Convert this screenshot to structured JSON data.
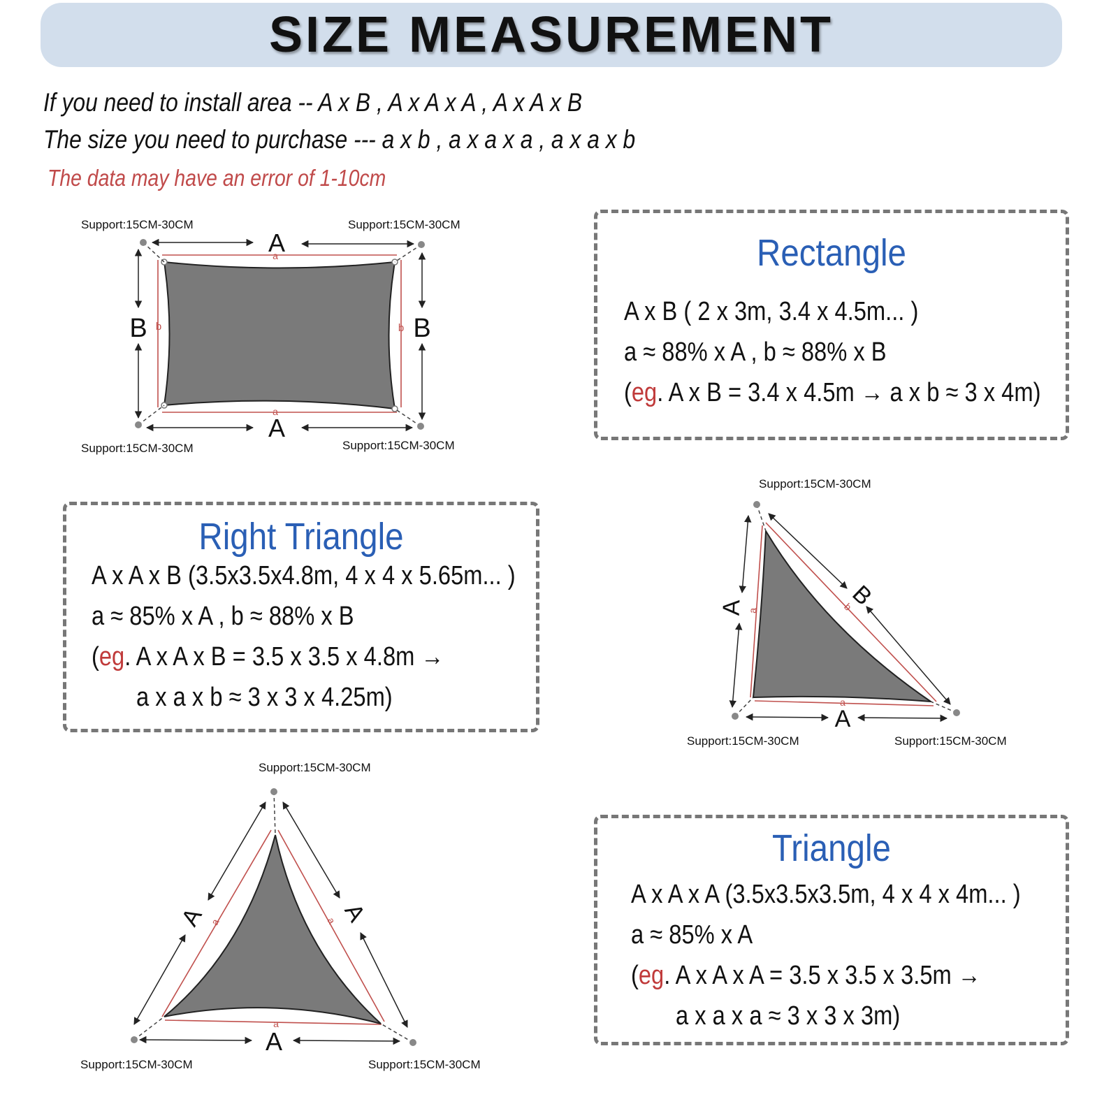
{
  "header": {
    "title": "SIZE MEASUREMENT"
  },
  "intro": {
    "line1": "If you need to install area -- A x B , A x A x A , A x A x B",
    "line2": "The size you need to purchase --- a x b , a x a x a , a x a x b",
    "note": "The data may have an error of 1-10cm"
  },
  "support_label": "Support:15CM-30CM",
  "labels": {
    "A": "A",
    "B": "B",
    "a": "a",
    "b": "b"
  },
  "rectangle": {
    "title": "Rectangle",
    "line1": "A x B ( 2 x 3m, 3.4 x 4.5m... )",
    "line2": "a ≈ 88% x A , b ≈ 88% x B",
    "eg_open": "(",
    "eg_word": "eg",
    "line3_rest": ". A x B = 3.4 x 4.5m →  a x b ≈ 3 x 4m)"
  },
  "right_triangle": {
    "title": "Right Triangle",
    "line1": "A x A x B (3.5x3.5x4.8m, 4 x 4 x 5.65m...  )",
    "line2": "a ≈ 85% x A , b ≈ 88% x B",
    "eg_open": "(",
    "eg_word": "eg",
    "line3_rest": ". A x A x B = 3.5 x 3.5 x 4.8m →",
    "line4": "a x a x b ≈ 3 x 3 x 4.25m)"
  },
  "triangle": {
    "title": "Triangle",
    "line1": "A x A x A (3.5x3.5x3.5m, 4 x 4 x 4m...  )",
    "line2": "a ≈ 85% x A",
    "eg_open": "(",
    "eg_word": "eg",
    "line3_rest": ". A x A x A = 3.5 x 3.5 x 3.5m →",
    "line4": "a x a x a ≈ 3 x 3 x 3m)"
  },
  "colors": {
    "shade": "#7a7a7a",
    "inner_line": "#c0504d",
    "title_blue": "#2a5fb5",
    "header_bg": "#d2deec"
  }
}
